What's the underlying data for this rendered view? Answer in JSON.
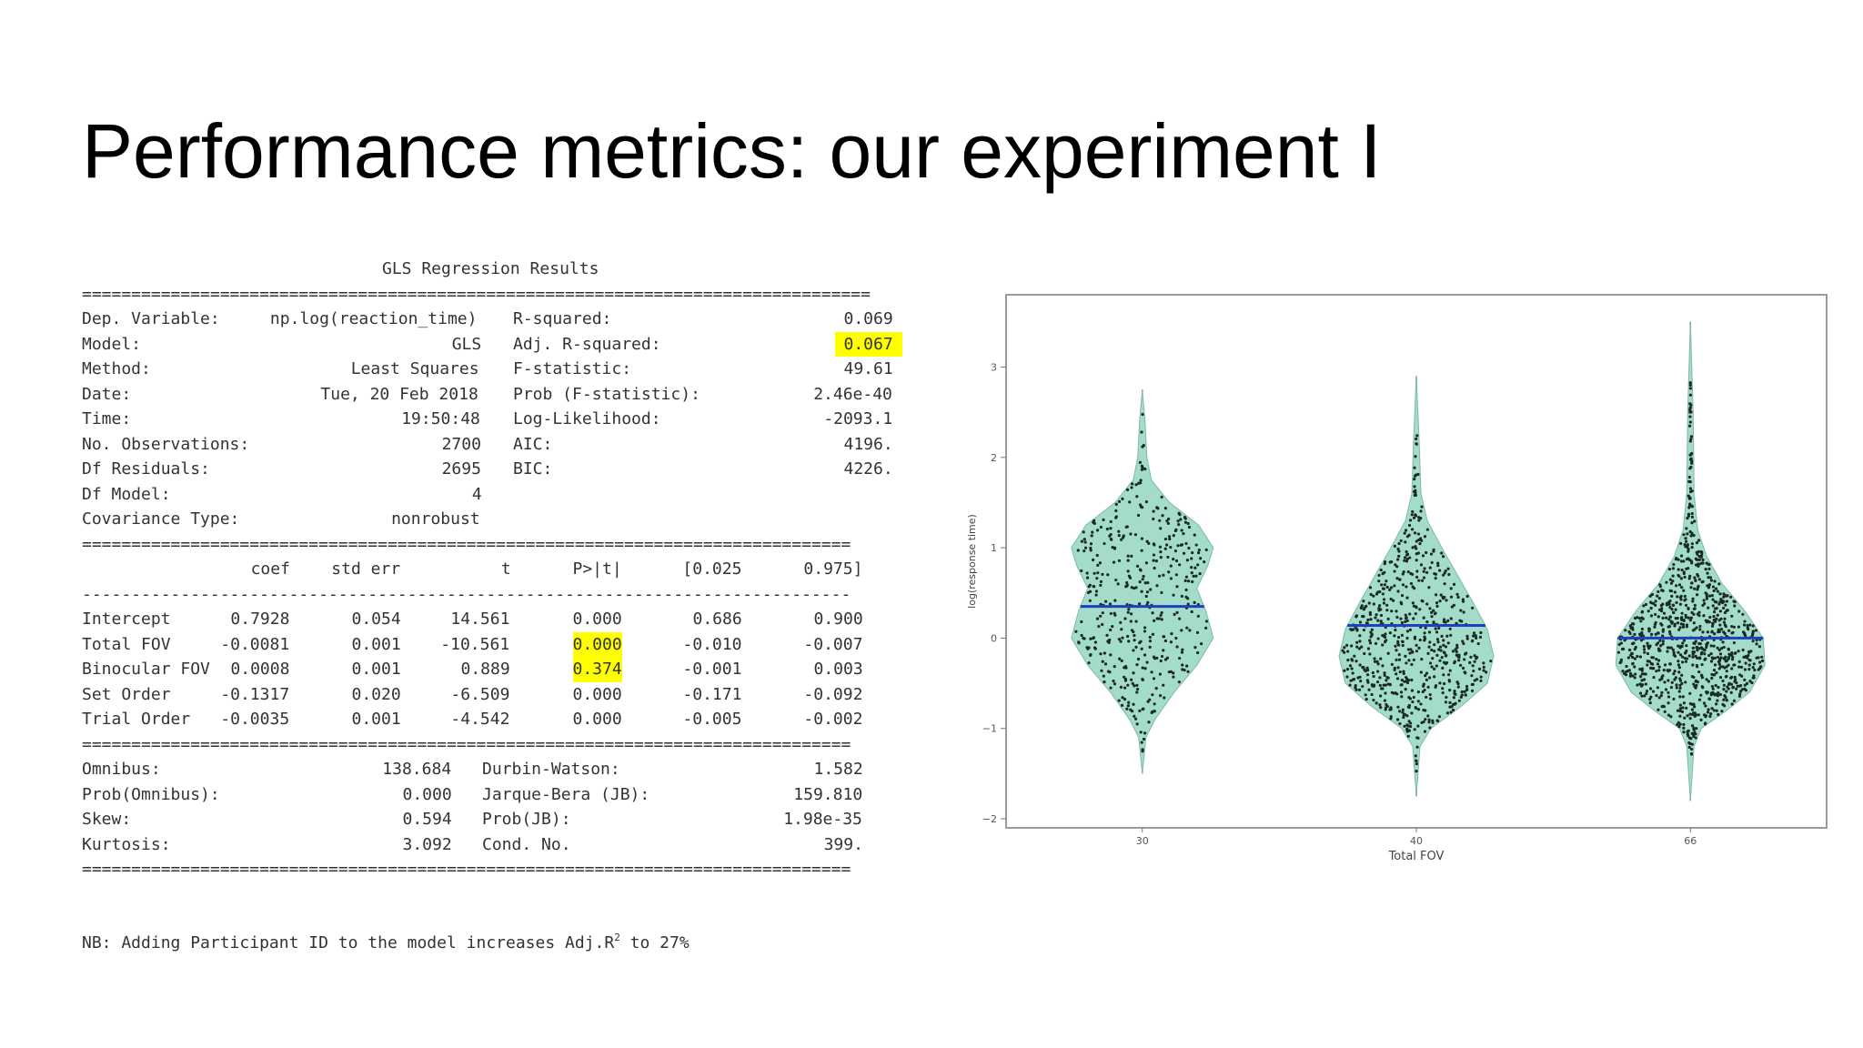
{
  "slide": {
    "title": "Performance metrics: our experiment I",
    "note_prefix": "NB: Adding Participant ID to the model increases Adj.R",
    "note_sup": "2",
    "note_suffix": " to 27%"
  },
  "regression": {
    "title": "GLS Regression Results",
    "rule_double": "================================================================================",
    "rule_double_short": "==============================================================================",
    "rule_single": "------------------------------------------------------------------------------",
    "summary_left": [
      {
        "label": "Dep. Variable:",
        "value": "np.log(reaction_time)"
      },
      {
        "label": "Model:",
        "value": "GLS"
      },
      {
        "label": "Method:",
        "value": "Least Squares"
      },
      {
        "label": "Date:",
        "value": "Tue, 20 Feb 2018"
      },
      {
        "label": "Time:",
        "value": "19:50:48"
      },
      {
        "label": "No. Observations:",
        "value": "2700"
      },
      {
        "label": "Df Residuals:",
        "value": "2695"
      },
      {
        "label": "Df Model:",
        "value": "4"
      },
      {
        "label": "Covariance Type:",
        "value": "nonrobust"
      }
    ],
    "summary_right": [
      {
        "label": "R-squared:",
        "value": "0.069"
      },
      {
        "label": "Adj. R-squared:",
        "value": "0.067"
      },
      {
        "label": "F-statistic:",
        "value": "49.61"
      },
      {
        "label": "Prob (F-statistic):",
        "value": "2.46e-40"
      },
      {
        "label": "Log-Likelihood:",
        "value": "-2093.1"
      },
      {
        "label": "AIC:",
        "value": "4196."
      },
      {
        "label": "BIC:",
        "value": "4226."
      }
    ],
    "coef_headers": [
      "coef",
      "std err",
      "t",
      "P>|t|",
      "[0.025",
      "0.975]"
    ],
    "coef_rows": [
      {
        "name": "Intercept",
        "values": [
          "0.7928",
          "0.054",
          "14.561",
          "0.000",
          "0.686",
          "0.900"
        ]
      },
      {
        "name": "Total FOV",
        "values": [
          "-0.0081",
          "0.001",
          "-10.561",
          "0.000",
          "-0.010",
          "-0.007"
        ]
      },
      {
        "name": "Binocular FOV",
        "values": [
          "0.0008",
          "0.001",
          "0.889",
          "0.374",
          "-0.001",
          "0.003"
        ]
      },
      {
        "name": "Set Order",
        "values": [
          "-0.1317",
          "0.020",
          "-6.509",
          "0.000",
          "-0.171",
          "-0.092"
        ]
      },
      {
        "name": "Trial Order",
        "values": [
          "-0.0035",
          "0.001",
          "-4.542",
          "0.000",
          "-0.005",
          "-0.002"
        ]
      }
    ],
    "diag_left": [
      {
        "label": "Omnibus:",
        "value": "138.684"
      },
      {
        "label": "Prob(Omnibus):",
        "value": "0.000"
      },
      {
        "label": "Skew:",
        "value": "0.594"
      },
      {
        "label": "Kurtosis:",
        "value": "3.092"
      }
    ],
    "diag_right": [
      {
        "label": "Durbin-Watson:",
        "value": "1.582"
      },
      {
        "label": "Jarque-Bera (JB):",
        "value": "159.810"
      },
      {
        "label": "Prob(JB):",
        "value": "1.98e-35"
      },
      {
        "label": "Cond. No.",
        "value": "399."
      }
    ],
    "highlight_color": "#ffff00"
  },
  "chart_data": {
    "type": "violin",
    "xlabel": "Total FOV",
    "ylabel": "log(response time)",
    "categories": [
      "30",
      "40",
      "66"
    ],
    "ylim": [
      -2.1,
      3.8
    ],
    "yticks": [
      -2,
      -1,
      0,
      1,
      2,
      3
    ],
    "medians": [
      0.35,
      0.14,
      0.0
    ],
    "ranges": [
      [
        -1.5,
        2.75
      ],
      [
        -1.75,
        2.9
      ],
      [
        -1.8,
        3.5
      ]
    ],
    "violin_color": "#a3dccb",
    "median_color": "#1f3fbf",
    "point_color": "#1a2a22"
  }
}
